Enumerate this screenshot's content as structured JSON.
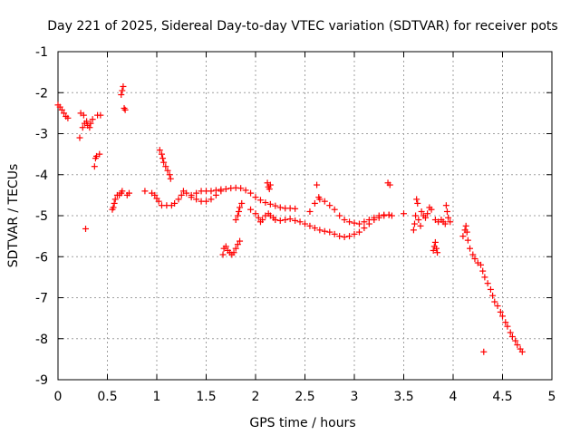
{
  "chart_data": {
    "type": "scatter",
    "title": "Day 221 of 2025, Sidereal Day-to-day VTEC variation (SDTVAR) for receiver pots",
    "xlabel": "GPS time / hours",
    "ylabel": "SDTVAR / TECUs",
    "xlim": [
      0,
      5
    ],
    "ylim": [
      -9,
      -1
    ],
    "grid": true,
    "marker": "plus",
    "x_ticks": [
      0,
      0.5,
      1,
      1.5,
      2,
      2.5,
      3,
      3.5,
      4,
      4.5,
      5
    ],
    "x_tick_labels": [
      "0",
      "0.5",
      "1",
      "1.5",
      "2",
      "2.5",
      "3",
      "3.5",
      "4",
      "4.5",
      "5"
    ],
    "y_ticks": [
      -9,
      -8,
      -7,
      -6,
      -5,
      -4,
      -3,
      -2,
      -1
    ],
    "y_tick_labels": [
      "-9",
      "-8",
      "-7",
      "-6",
      "-5",
      "-4",
      "-3",
      "-2",
      "-1"
    ],
    "color": "#ff0000",
    "series": [
      {
        "name": "pots",
        "points": [
          [
            0.0,
            -2.3
          ],
          [
            0.02,
            -2.35
          ],
          [
            0.04,
            -2.42
          ],
          [
            0.06,
            -2.5
          ],
          [
            0.08,
            -2.58
          ],
          [
            0.1,
            -2.62
          ],
          [
            0.22,
            -3.1
          ],
          [
            0.23,
            -2.5
          ],
          [
            0.25,
            -2.85
          ],
          [
            0.26,
            -2.55
          ],
          [
            0.27,
            -2.75
          ],
          [
            0.28,
            -5.32
          ],
          [
            0.29,
            -2.7
          ],
          [
            0.3,
            -2.8
          ],
          [
            0.32,
            -2.85
          ],
          [
            0.33,
            -2.75
          ],
          [
            0.35,
            -2.65
          ],
          [
            0.37,
            -3.8
          ],
          [
            0.38,
            -3.6
          ],
          [
            0.39,
            -3.55
          ],
          [
            0.4,
            -2.55
          ],
          [
            0.42,
            -3.5
          ],
          [
            0.43,
            -2.55
          ],
          [
            0.55,
            -4.85
          ],
          [
            0.56,
            -4.8
          ],
          [
            0.57,
            -4.7
          ],
          [
            0.58,
            -4.6
          ],
          [
            0.6,
            -4.5
          ],
          [
            0.62,
            -4.5
          ],
          [
            0.64,
            -4.45
          ],
          [
            0.65,
            -4.4
          ],
          [
            0.64,
            -2.05
          ],
          [
            0.65,
            -1.95
          ],
          [
            0.66,
            -1.85
          ],
          [
            0.67,
            -2.38
          ],
          [
            0.68,
            -2.42
          ],
          [
            0.7,
            -4.5
          ],
          [
            0.72,
            -4.45
          ],
          [
            0.88,
            -4.4
          ],
          [
            0.95,
            -4.45
          ],
          [
            0.98,
            -4.5
          ],
          [
            1.0,
            -4.58
          ],
          [
            1.02,
            -4.65
          ],
          [
            1.03,
            -3.4
          ],
          [
            1.05,
            -3.5
          ],
          [
            1.06,
            -3.6
          ],
          [
            1.07,
            -3.7
          ],
          [
            1.09,
            -3.8
          ],
          [
            1.11,
            -3.9
          ],
          [
            1.13,
            -4.0
          ],
          [
            1.14,
            -4.1
          ],
          [
            1.05,
            -4.75
          ],
          [
            1.1,
            -4.75
          ],
          [
            1.15,
            -4.75
          ],
          [
            1.18,
            -4.7
          ],
          [
            1.22,
            -4.6
          ],
          [
            1.25,
            -4.5
          ],
          [
            1.27,
            -4.4
          ],
          [
            1.3,
            -4.45
          ],
          [
            1.35,
            -4.5
          ],
          [
            1.4,
            -4.45
          ],
          [
            1.45,
            -4.4
          ],
          [
            1.5,
            -4.4
          ],
          [
            1.55,
            -4.4
          ],
          [
            1.6,
            -4.38
          ],
          [
            1.65,
            -4.36
          ],
          [
            1.7,
            -4.35
          ],
          [
            1.75,
            -4.33
          ],
          [
            1.8,
            -4.32
          ],
          [
            1.85,
            -4.33
          ],
          [
            1.9,
            -4.38
          ],
          [
            1.95,
            -4.45
          ],
          [
            2.0,
            -4.55
          ],
          [
            2.05,
            -4.62
          ],
          [
            2.1,
            -4.68
          ],
          [
            2.15,
            -4.72
          ],
          [
            2.2,
            -4.76
          ],
          [
            2.25,
            -4.8
          ],
          [
            2.3,
            -4.82
          ],
          [
            2.35,
            -4.82
          ],
          [
            2.4,
            -4.83
          ],
          [
            1.35,
            -4.55
          ],
          [
            1.4,
            -4.6
          ],
          [
            1.45,
            -4.65
          ],
          [
            1.5,
            -4.65
          ],
          [
            1.55,
            -4.6
          ],
          [
            1.6,
            -4.5
          ],
          [
            1.65,
            -4.4
          ],
          [
            1.67,
            -5.95
          ],
          [
            1.68,
            -5.8
          ],
          [
            1.7,
            -5.75
          ],
          [
            1.72,
            -5.85
          ],
          [
            1.74,
            -5.9
          ],
          [
            1.76,
            -5.95
          ],
          [
            1.78,
            -5.9
          ],
          [
            1.8,
            -5.8
          ],
          [
            1.82,
            -5.7
          ],
          [
            1.84,
            -5.62
          ],
          [
            1.8,
            -5.1
          ],
          [
            1.82,
            -5.0
          ],
          [
            1.83,
            -4.9
          ],
          [
            1.84,
            -4.8
          ],
          [
            1.86,
            -4.7
          ],
          [
            1.95,
            -4.85
          ],
          [
            2.0,
            -4.95
          ],
          [
            2.03,
            -5.05
          ],
          [
            2.05,
            -5.15
          ],
          [
            2.07,
            -5.1
          ],
          [
            2.1,
            -5.0
          ],
          [
            2.13,
            -4.95
          ],
          [
            2.15,
            -5.0
          ],
          [
            2.18,
            -5.05
          ],
          [
            2.2,
            -5.1
          ],
          [
            2.25,
            -5.12
          ],
          [
            2.3,
            -5.1
          ],
          [
            2.35,
            -5.08
          ],
          [
            2.4,
            -5.12
          ],
          [
            2.45,
            -5.15
          ],
          [
            2.5,
            -5.2
          ],
          [
            2.55,
            -5.25
          ],
          [
            2.6,
            -5.3
          ],
          [
            2.65,
            -5.35
          ],
          [
            2.7,
            -5.38
          ],
          [
            2.75,
            -5.4
          ],
          [
            2.8,
            -5.45
          ],
          [
            2.85,
            -5.5
          ],
          [
            2.9,
            -5.52
          ],
          [
            2.95,
            -5.5
          ],
          [
            3.0,
            -5.45
          ],
          [
            3.05,
            -5.4
          ],
          [
            3.1,
            -5.3
          ],
          [
            3.15,
            -5.2
          ],
          [
            3.2,
            -5.1
          ],
          [
            3.25,
            -5.05
          ],
          [
            3.3,
            -5.0
          ],
          [
            3.35,
            -4.98
          ],
          [
            3.38,
            -5.0
          ],
          [
            2.12,
            -4.2
          ],
          [
            2.13,
            -4.3
          ],
          [
            2.14,
            -4.35
          ],
          [
            2.15,
            -4.25
          ],
          [
            2.55,
            -4.9
          ],
          [
            2.6,
            -4.7
          ],
          [
            2.62,
            -4.25
          ],
          [
            2.64,
            -4.55
          ],
          [
            2.65,
            -4.6
          ],
          [
            2.7,
            -4.65
          ],
          [
            2.75,
            -4.75
          ],
          [
            2.8,
            -4.85
          ],
          [
            2.85,
            -5.0
          ],
          [
            2.9,
            -5.1
          ],
          [
            2.95,
            -5.15
          ],
          [
            3.0,
            -5.18
          ],
          [
            3.05,
            -5.2
          ],
          [
            3.1,
            -5.15
          ],
          [
            3.15,
            -5.1
          ],
          [
            3.2,
            -5.05
          ],
          [
            3.25,
            -5.0
          ],
          [
            3.3,
            -4.98
          ],
          [
            3.35,
            -4.98
          ],
          [
            3.34,
            -4.2
          ],
          [
            3.36,
            -4.25
          ],
          [
            3.5,
            -4.95
          ],
          [
            3.6,
            -5.35
          ],
          [
            3.61,
            -5.2
          ],
          [
            3.62,
            -5.0
          ],
          [
            3.63,
            -4.6
          ],
          [
            3.64,
            -4.7
          ],
          [
            3.65,
            -5.1
          ],
          [
            3.67,
            -5.25
          ],
          [
            3.68,
            -4.9
          ],
          [
            3.7,
            -5.0
          ],
          [
            3.72,
            -5.05
          ],
          [
            3.74,
            -4.95
          ],
          [
            3.76,
            -4.8
          ],
          [
            3.78,
            -4.85
          ],
          [
            3.8,
            -5.85
          ],
          [
            3.81,
            -5.75
          ],
          [
            3.82,
            -5.65
          ],
          [
            3.83,
            -5.8
          ],
          [
            3.84,
            -5.9
          ],
          [
            3.82,
            -5.1
          ],
          [
            3.85,
            -5.15
          ],
          [
            3.88,
            -5.1
          ],
          [
            3.9,
            -5.15
          ],
          [
            3.92,
            -5.2
          ],
          [
            3.93,
            -4.75
          ],
          [
            3.94,
            -4.9
          ],
          [
            3.95,
            -5.05
          ],
          [
            3.97,
            -5.15
          ],
          [
            4.1,
            -5.5
          ],
          [
            4.12,
            -5.35
          ],
          [
            4.13,
            -5.25
          ],
          [
            4.14,
            -5.4
          ],
          [
            4.15,
            -5.6
          ],
          [
            4.17,
            -5.8
          ],
          [
            4.2,
            -5.95
          ],
          [
            4.22,
            -6.05
          ],
          [
            4.25,
            -6.15
          ],
          [
            4.28,
            -6.2
          ],
          [
            4.3,
            -6.35
          ],
          [
            4.32,
            -6.5
          ],
          [
            4.31,
            -8.32
          ],
          [
            4.35,
            -6.65
          ],
          [
            4.38,
            -6.8
          ],
          [
            4.4,
            -6.95
          ],
          [
            4.42,
            -7.1
          ],
          [
            4.45,
            -7.2
          ],
          [
            4.48,
            -7.35
          ],
          [
            4.5,
            -7.45
          ],
          [
            4.53,
            -7.6
          ],
          [
            4.55,
            -7.7
          ],
          [
            4.58,
            -7.85
          ],
          [
            4.6,
            -7.95
          ],
          [
            4.63,
            -8.05
          ],
          [
            4.65,
            -8.15
          ],
          [
            4.68,
            -8.25
          ],
          [
            4.7,
            -8.32
          ]
        ]
      }
    ]
  }
}
